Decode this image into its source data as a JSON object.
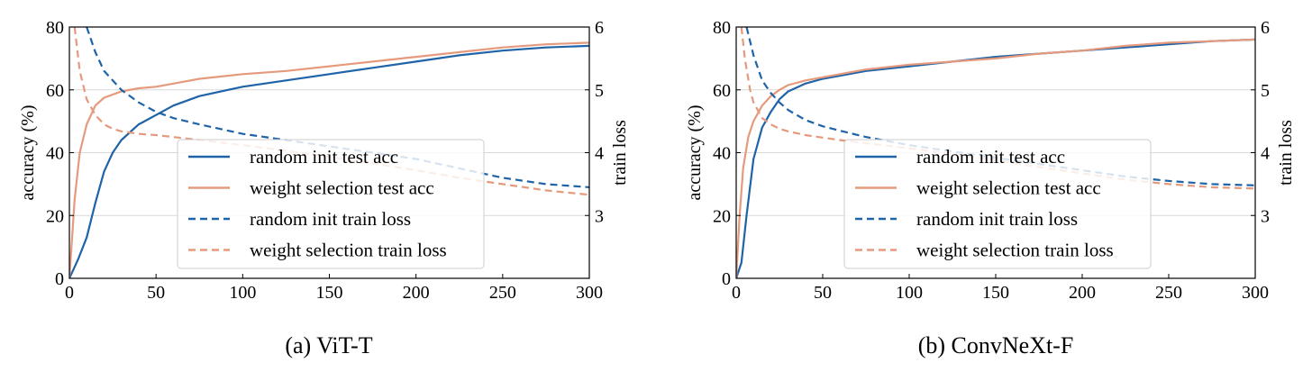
{
  "colors": {
    "random": "#1f63a8",
    "weight": "#e59a7e",
    "grid": "#d9d9d9"
  },
  "chart_data": [
    {
      "type": "line",
      "caption": "(a) ViT-T",
      "xlabel": "",
      "ylabel": "accuracy (%)",
      "y2label": "train loss",
      "xlim": [
        0,
        300
      ],
      "ylim": [
        0,
        80
      ],
      "y2lim": [
        2,
        6
      ],
      "xticks": [
        "0",
        "50",
        "100",
        "150",
        "200",
        "250",
        "300"
      ],
      "yticks": [
        "0",
        "20",
        "40",
        "60",
        "80"
      ],
      "y2ticks": [
        "3",
        "4",
        "5",
        "6"
      ],
      "grid": true,
      "legend": [
        "random init test acc",
        "weight selection test acc",
        "random init train loss",
        "weight selection train loss"
      ],
      "series": [
        {
          "name": "random init test acc",
          "axis": "left",
          "style": "solid",
          "color_key": "random",
          "x": [
            0,
            5,
            10,
            15,
            20,
            25,
            30,
            40,
            50,
            60,
            75,
            100,
            125,
            150,
            175,
            200,
            225,
            250,
            275,
            300
          ],
          "values": [
            0,
            6,
            13,
            24,
            34,
            40,
            44,
            49,
            52,
            55,
            58,
            61,
            63,
            65,
            67,
            69,
            71,
            72.5,
            73.5,
            74
          ]
        },
        {
          "name": "weight selection test acc",
          "axis": "left",
          "style": "solid",
          "color_key": "weight",
          "x": [
            0,
            3,
            6,
            10,
            15,
            20,
            30,
            40,
            50,
            60,
            75,
            100,
            125,
            150,
            175,
            200,
            225,
            250,
            275,
            300
          ],
          "values": [
            0,
            25,
            40,
            49,
            55,
            57.5,
            59.5,
            60.5,
            61,
            62,
            63.5,
            65,
            66,
            67.5,
            69,
            70.5,
            72,
            73.5,
            74.5,
            75
          ]
        },
        {
          "name": "random init train loss",
          "axis": "right",
          "style": "dashed",
          "color_key": "random",
          "x": [
            10,
            15,
            20,
            25,
            30,
            40,
            50,
            60,
            75,
            100,
            125,
            150,
            175,
            200,
            225,
            250,
            275,
            300
          ],
          "values": [
            6.0,
            5.6,
            5.3,
            5.15,
            5.0,
            4.8,
            4.65,
            4.55,
            4.45,
            4.3,
            4.2,
            4.1,
            4.0,
            3.9,
            3.75,
            3.6,
            3.5,
            3.45
          ]
        },
        {
          "name": "weight selection train loss",
          "axis": "right",
          "style": "dashed",
          "color_key": "weight",
          "x": [
            3,
            6,
            10,
            15,
            20,
            25,
            30,
            40,
            50,
            60,
            75,
            100,
            125,
            150,
            175,
            200,
            225,
            250,
            275,
            300
          ],
          "values": [
            6.0,
            5.3,
            4.85,
            4.6,
            4.45,
            4.38,
            4.34,
            4.3,
            4.28,
            4.25,
            4.2,
            4.12,
            4.03,
            3.93,
            3.83,
            3.72,
            3.6,
            3.5,
            3.4,
            3.33
          ]
        }
      ]
    },
    {
      "type": "line",
      "caption": "(b) ConvNeXt-F",
      "xlabel": "",
      "ylabel": "accuracy (%)",
      "y2label": "train loss",
      "xlim": [
        0,
        300
      ],
      "ylim": [
        0,
        80
      ],
      "y2lim": [
        2,
        6
      ],
      "xticks": [
        "0",
        "50",
        "100",
        "150",
        "200",
        "250",
        "300"
      ],
      "yticks": [
        "0",
        "20",
        "40",
        "60",
        "80"
      ],
      "y2ticks": [
        "3",
        "4",
        "5",
        "6"
      ],
      "grid": true,
      "legend": [
        "random init test acc",
        "weight selection test acc",
        "random init train loss",
        "weight selection train loss"
      ],
      "series": [
        {
          "name": "random init test acc",
          "axis": "left",
          "style": "solid",
          "color_key": "random",
          "x": [
            0,
            3,
            6,
            10,
            15,
            20,
            25,
            30,
            40,
            50,
            60,
            75,
            100,
            125,
            150,
            175,
            200,
            225,
            250,
            275,
            300
          ],
          "values": [
            0,
            5,
            20,
            38,
            48,
            53,
            57,
            59.5,
            62,
            63.5,
            64.5,
            66,
            67.5,
            69,
            70.5,
            71.5,
            72.5,
            73.5,
            74.5,
            75.5,
            76
          ]
        },
        {
          "name": "weight selection test acc",
          "axis": "left",
          "style": "solid",
          "color_key": "weight",
          "x": [
            0,
            2,
            4,
            7,
            10,
            15,
            20,
            25,
            30,
            40,
            50,
            60,
            75,
            100,
            125,
            150,
            175,
            200,
            225,
            250,
            275,
            300
          ],
          "values": [
            0,
            20,
            35,
            45,
            50,
            55,
            58,
            60,
            61.5,
            63,
            64,
            65,
            66.5,
            68,
            69,
            70,
            71.5,
            72.5,
            74,
            75,
            75.5,
            76
          ]
        },
        {
          "name": "random init train loss",
          "axis": "right",
          "style": "dashed",
          "color_key": "random",
          "x": [
            6,
            10,
            15,
            20,
            25,
            30,
            40,
            50,
            60,
            75,
            100,
            125,
            150,
            175,
            200,
            225,
            250,
            275,
            300
          ],
          "values": [
            6.0,
            5.55,
            5.15,
            4.95,
            4.8,
            4.68,
            4.52,
            4.42,
            4.35,
            4.25,
            4.12,
            4.02,
            3.92,
            3.82,
            3.72,
            3.62,
            3.55,
            3.5,
            3.48
          ]
        },
        {
          "name": "weight selection train loss",
          "axis": "right",
          "style": "dashed",
          "color_key": "weight",
          "x": [
            3,
            5,
            8,
            10,
            15,
            20,
            25,
            30,
            40,
            50,
            60,
            75,
            100,
            125,
            150,
            175,
            200,
            225,
            250,
            275,
            300
          ],
          "values": [
            6.0,
            5.5,
            5.0,
            4.8,
            4.55,
            4.45,
            4.38,
            4.34,
            4.28,
            4.24,
            4.2,
            4.15,
            4.07,
            3.98,
            3.88,
            3.77,
            3.67,
            3.57,
            3.5,
            3.45,
            3.43
          ]
        }
      ]
    }
  ]
}
